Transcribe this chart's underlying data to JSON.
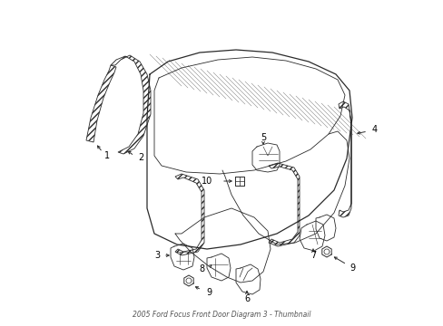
{
  "title": "2005 Ford Focus Front Door Diagram 3 - Thumbnail",
  "bg_color": "#ffffff",
  "line_color": "#2a2a2a",
  "label_color": "#000000",
  "fig_width": 4.89,
  "fig_height": 3.6,
  "dpi": 100
}
